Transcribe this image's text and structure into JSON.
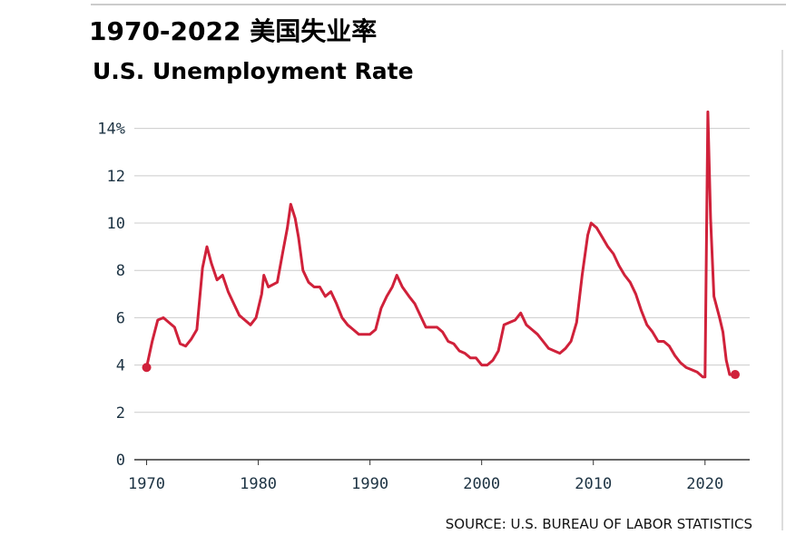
{
  "chart_data": {
    "type": "line",
    "title": "1970-2022 美国失业率",
    "subtitle": "U.S. Unemployment Rate",
    "source": "SOURCE: U.S. BUREAU OF LABOR STATISTICS",
    "xlim": [
      1968.9,
      2024.0
    ],
    "xticks": [
      1970,
      1980,
      1990,
      2000,
      2010,
      2020
    ],
    "ylim": [
      0,
      14.6
    ],
    "yticks": [
      0,
      2,
      4,
      6,
      8,
      10,
      12,
      {
        "value": 14,
        "label": "14%"
      }
    ],
    "grid": true,
    "series": [
      {
        "color": "#d0213a",
        "x": [
          1970.0,
          1970.5,
          1971.0,
          1971.5,
          1972.0,
          1972.5,
          1973.0,
          1973.5,
          1974.0,
          1974.5,
          1975.0,
          1975.4,
          1975.8,
          1976.3,
          1976.8,
          1977.3,
          1977.8,
          1978.3,
          1978.8,
          1979.3,
          1979.8,
          1980.3,
          1980.5,
          1980.9,
          1981.3,
          1981.7,
          1982.2,
          1982.6,
          1982.9,
          1983.3,
          1983.6,
          1984.0,
          1984.5,
          1985.0,
          1985.5,
          1986.0,
          1986.5,
          1987.0,
          1987.5,
          1988.0,
          1988.5,
          1989.0,
          1989.5,
          1990.0,
          1990.5,
          1991.0,
          1991.5,
          1992.0,
          1992.4,
          1992.9,
          1993.5,
          1994.0,
          1994.5,
          1995.0,
          1995.5,
          1996.0,
          1996.5,
          1997.0,
          1997.5,
          1998.0,
          1998.5,
          1999.0,
          1999.5,
          2000.0,
          2000.5,
          2001.0,
          2001.5,
          2002.0,
          2002.5,
          2003.0,
          2003.5,
          2004.0,
          2004.5,
          2005.0,
          2005.5,
          2006.0,
          2006.5,
          2007.0,
          2007.5,
          2008.0,
          2008.5,
          2009.0,
          2009.5,
          2009.8,
          2010.3,
          2010.8,
          2011.3,
          2011.8,
          2012.3,
          2012.8,
          2013.3,
          2013.8,
          2014.3,
          2014.8,
          2015.3,
          2015.8,
          2016.3,
          2016.8,
          2017.3,
          2017.8,
          2018.3,
          2018.8,
          2019.3,
          2019.8,
          2020.0,
          2020.25,
          2020.5,
          2020.8,
          2021.3,
          2021.6,
          2021.9,
          2022.2,
          2022.7
        ],
        "values": [
          3.9,
          5.0,
          5.9,
          6.0,
          5.8,
          5.6,
          4.9,
          4.8,
          5.1,
          5.5,
          8.1,
          9.0,
          8.3,
          7.6,
          7.8,
          7.1,
          6.6,
          6.1,
          5.9,
          5.7,
          6.0,
          7.0,
          7.8,
          7.3,
          7.4,
          7.5,
          8.8,
          9.8,
          10.8,
          10.2,
          9.4,
          8.0,
          7.5,
          7.3,
          7.3,
          6.9,
          7.1,
          6.6,
          6.0,
          5.7,
          5.5,
          5.3,
          5.3,
          5.3,
          5.5,
          6.4,
          6.9,
          7.3,
          7.8,
          7.3,
          6.9,
          6.6,
          6.1,
          5.6,
          5.6,
          5.6,
          5.4,
          5.0,
          4.9,
          4.6,
          4.5,
          4.3,
          4.3,
          4.0,
          4.0,
          4.2,
          4.6,
          5.7,
          5.8,
          5.9,
          6.2,
          5.7,
          5.5,
          5.3,
          5.0,
          4.7,
          4.6,
          4.5,
          4.7,
          5.0,
          5.8,
          7.8,
          9.5,
          10.0,
          9.8,
          9.4,
          9.0,
          8.7,
          8.2,
          7.8,
          7.5,
          7.0,
          6.3,
          5.7,
          5.4,
          5.0,
          5.0,
          4.8,
          4.4,
          4.1,
          3.9,
          3.8,
          3.7,
          3.5,
          3.5,
          14.7,
          10.2,
          6.9,
          6.0,
          5.4,
          4.2,
          3.6,
          3.6
        ]
      }
    ]
  }
}
